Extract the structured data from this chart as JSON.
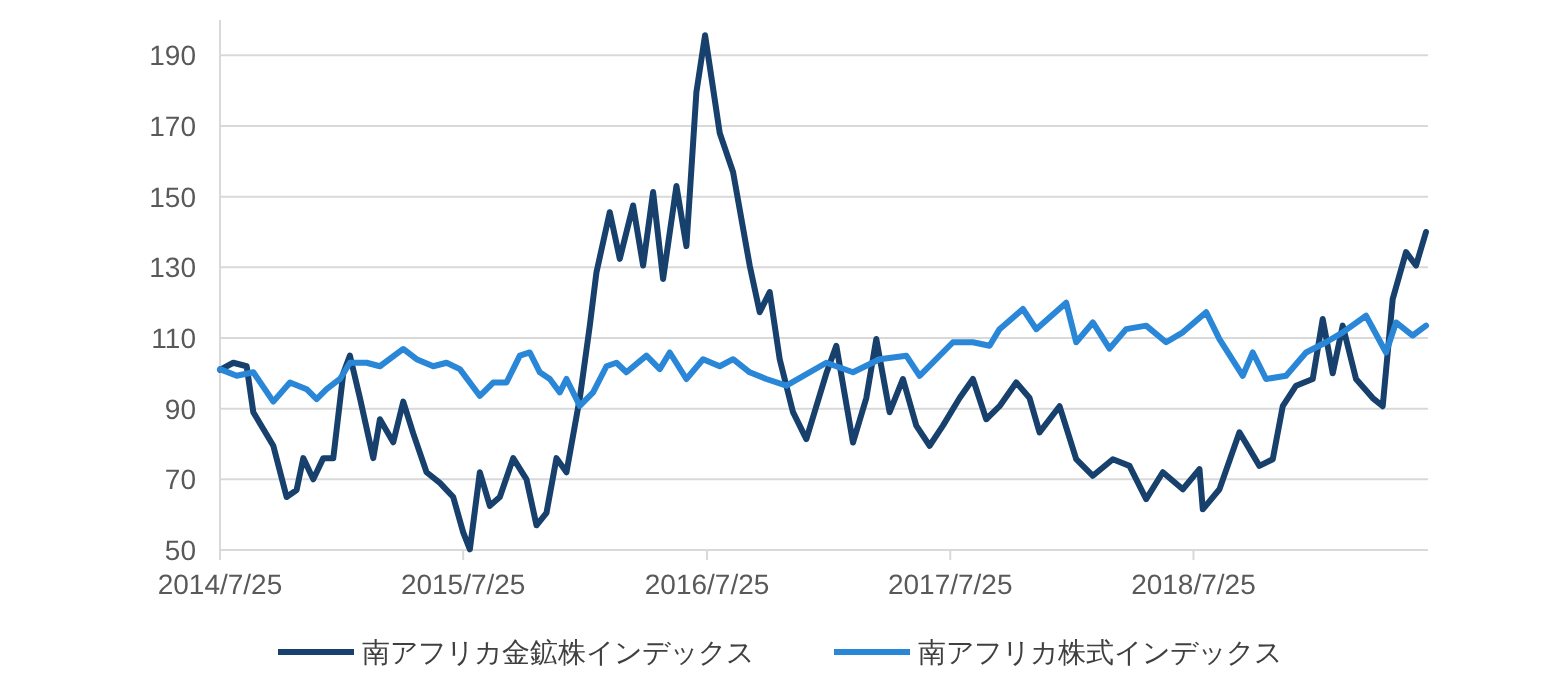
{
  "chart_data": {
    "type": "line",
    "ylim": [
      50,
      200
    ],
    "yticks": [
      50,
      70,
      90,
      110,
      130,
      150,
      170,
      190
    ],
    "xlim": [
      "2014-07-25",
      "2019-07-12"
    ],
    "xticks": [
      {
        "value": "2014-07-25",
        "label": "2014/7/25"
      },
      {
        "value": "2015-07-25",
        "label": "2015/7/25"
      },
      {
        "value": "2016-07-25",
        "label": "2016/7/25"
      },
      {
        "value": "2017-07-25",
        "label": "2017/7/25"
      },
      {
        "value": "2018-07-25",
        "label": "2018/7/25"
      }
    ],
    "grid": "y",
    "legend": "bottom",
    "marker": "none",
    "line_style": "solid",
    "series": [
      {
        "name": "南アフリカ金鉱株インデックス",
        "color": "#17406d",
        "x": [
          "2014-07-25",
          "2014-08-14",
          "2014-09-03",
          "2014-09-13",
          "2014-10-13",
          "2014-11-02",
          "2014-11-17",
          "2014-11-27",
          "2014-12-12",
          "2014-12-27",
          "2015-01-11",
          "2015-01-26",
          "2015-02-05",
          "2015-02-20",
          "2015-03-12",
          "2015-03-22",
          "2015-04-11",
          "2015-04-26",
          "2015-05-11",
          "2015-05-31",
          "2015-06-20",
          "2015-07-10",
          "2015-07-25",
          "2015-08-04",
          "2015-08-19",
          "2015-09-03",
          "2015-09-18",
          "2015-10-08",
          "2015-10-28",
          "2015-11-12",
          "2015-11-27",
          "2015-12-12",
          "2015-12-27",
          "2016-01-16",
          "2016-01-31",
          "2016-02-10",
          "2016-03-01",
          "2016-03-16",
          "2016-04-05",
          "2016-04-20",
          "2016-05-05",
          "2016-05-20",
          "2016-06-09",
          "2016-06-24",
          "2016-07-09",
          "2016-07-22",
          "2016-07-29",
          "2016-08-13",
          "2016-09-02",
          "2016-09-27",
          "2016-10-12",
          "2016-10-27",
          "2016-11-11",
          "2016-12-01",
          "2016-12-21",
          "2017-01-20",
          "2017-02-04",
          "2017-03-01",
          "2017-03-21",
          "2017-04-05",
          "2017-04-25",
          "2017-05-15",
          "2017-06-04",
          "2017-06-24",
          "2017-07-14",
          "2017-08-08",
          "2017-08-28",
          "2017-09-17",
          "2017-10-07",
          "2017-11-01",
          "2017-11-21",
          "2017-12-06",
          "2018-01-05",
          "2018-01-30",
          "2018-02-24",
          "2018-03-26",
          "2018-04-20",
          "2018-05-15",
          "2018-06-09",
          "2018-07-09",
          "2018-08-03",
          "2018-08-08",
          "2018-09-02",
          "2018-10-02",
          "2018-11-01",
          "2018-11-21",
          "2018-12-06",
          "2018-12-26",
          "2019-01-20",
          "2019-02-04",
          "2019-02-19",
          "2019-03-06",
          "2019-03-26",
          "2019-04-20",
          "2019-05-05",
          "2019-05-20",
          "2019-06-09",
          "2019-06-24",
          "2019-07-09"
        ],
        "values": [
          101,
          103,
          102,
          89,
          79.5,
          65,
          67,
          76,
          70,
          76,
          76,
          100,
          105,
          93,
          76,
          87,
          80.5,
          92,
          83,
          72,
          69,
          65,
          55,
          50.2,
          72,
          62.5,
          65,
          76,
          70,
          57,
          60.5,
          76,
          72,
          93,
          113.5,
          128.6,
          145.6,
          132.4,
          147.5,
          130.5,
          151.3,
          126.7,
          153,
          136,
          179.6,
          195.7,
          187,
          168,
          157,
          130.5,
          117.3,
          123,
          104,
          89,
          81.4,
          100,
          107.8,
          80.4,
          93,
          109.7,
          89,
          98.4,
          85.2,
          79.5,
          85.2,
          93,
          98.4,
          87,
          90.7,
          97.4,
          93,
          83.3,
          90.7,
          75.7,
          71,
          75.7,
          73.8,
          64.4,
          72,
          67.2,
          72.9,
          61.5,
          67.2,
          83.3,
          73.8,
          75.7,
          90.7,
          96.5,
          98.4,
          115.4,
          100,
          113.5,
          98.4,
          93,
          90.7,
          121,
          134.3,
          130.5,
          140
        ]
      },
      {
        "name": "南アフリカ株式インデックス",
        "color": "#2a87d8",
        "x": [
          "2014-07-25",
          "2014-08-19",
          "2014-09-13",
          "2014-10-13",
          "2014-11-07",
          "2014-12-02",
          "2014-12-17",
          "2015-01-01",
          "2015-01-21",
          "2015-02-05",
          "2015-03-02",
          "2015-03-22",
          "2015-04-26",
          "2015-05-16",
          "2015-06-10",
          "2015-06-30",
          "2015-07-20",
          "2015-08-19",
          "2015-09-08",
          "2015-09-28",
          "2015-10-18",
          "2015-11-02",
          "2015-11-17",
          "2015-12-02",
          "2015-12-17",
          "2015-12-27",
          "2016-01-16",
          "2016-02-05",
          "2016-02-25",
          "2016-03-11",
          "2016-03-26",
          "2016-04-25",
          "2016-05-15",
          "2016-05-30",
          "2016-06-24",
          "2016-07-19",
          "2016-08-13",
          "2016-09-02",
          "2016-09-27",
          "2016-10-22",
          "2016-11-21",
          "2017-01-20",
          "2017-03-01",
          "2017-04-10",
          "2017-05-20",
          "2017-06-09",
          "2017-07-29",
          "2017-08-28",
          "2017-09-22",
          "2017-10-07",
          "2017-11-11",
          "2017-12-01",
          "2018-01-15",
          "2018-01-30",
          "2018-02-24",
          "2018-03-21",
          "2018-04-15",
          "2018-05-15",
          "2018-06-14",
          "2018-07-09",
          "2018-08-13",
          "2018-09-02",
          "2018-10-07",
          "2018-10-22",
          "2018-11-11",
          "2018-12-11",
          "2019-01-10",
          "2019-02-09",
          "2019-03-06",
          "2019-04-10",
          "2019-05-10",
          "2019-05-25",
          "2019-06-19",
          "2019-07-09"
        ],
        "values": [
          101.2,
          99.3,
          100.3,
          92,
          97.4,
          95.5,
          92.7,
          95.5,
          98.4,
          103,
          103,
          102,
          106.9,
          104,
          102,
          103,
          101.2,
          93.6,
          97.4,
          97.4,
          105,
          105.9,
          100.3,
          98.4,
          94.6,
          98.4,
          90.8,
          94.6,
          102,
          103,
          100.3,
          105,
          101.2,
          105.9,
          98.4,
          104,
          102,
          104,
          100.3,
          98.4,
          96.5,
          103,
          100.3,
          104,
          105,
          99.3,
          108.8,
          108.8,
          107.8,
          112.5,
          118.2,
          112.5,
          120,
          108.8,
          114.4,
          107,
          112.5,
          113.5,
          108.8,
          111.6,
          117.3,
          109.7,
          99.3,
          105.9,
          98.4,
          99.3,
          105.9,
          108.8,
          111.6,
          116.3,
          105.9,
          114.4,
          110.7,
          113.5
        ]
      }
    ]
  }
}
